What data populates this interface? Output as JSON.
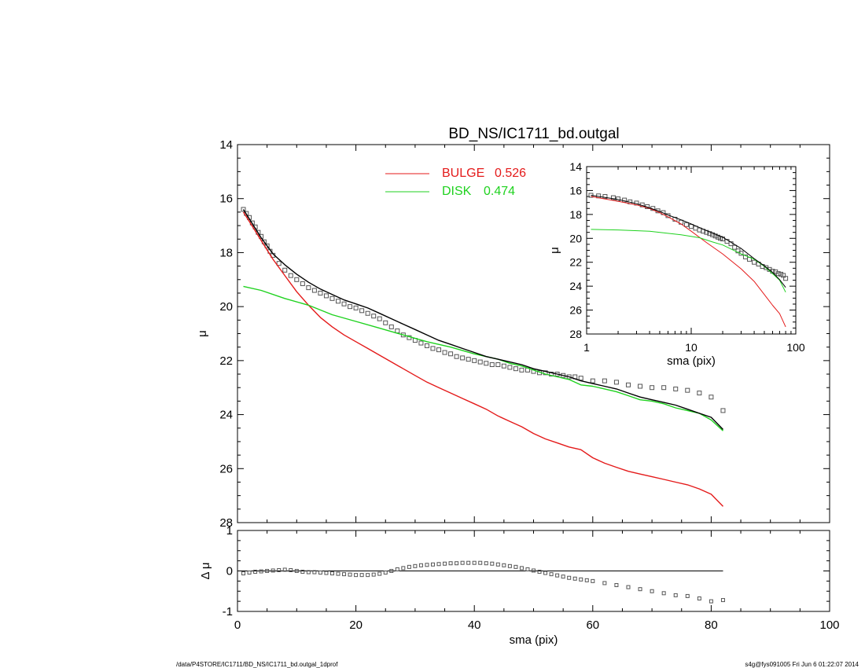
{
  "footer": {
    "left": "/data/P4STORE/IC1711/BD_NS/IC1711_bd.outgal_1dprof",
    "right": "s4g@fys091005  Fri Jun  6 01:22:07 2014"
  },
  "colors": {
    "bulge": "#e41a1a",
    "disk": "#1fd21f",
    "data": "#555555",
    "model": "#000000"
  },
  "chart_data": [
    {
      "id": "main",
      "type": "line",
      "title": "BD_NS/IC1711_bd.outgal",
      "ylabel": "μ",
      "xlim": [
        0,
        100
      ],
      "ylim": [
        28,
        14
      ],
      "xticks": [
        "0",
        "20",
        "40",
        "60",
        "80",
        "100"
      ],
      "yticks": [
        "14",
        "16",
        "18",
        "20",
        "22",
        "24",
        "26",
        "28"
      ],
      "legend": [
        {
          "name": "BULGE",
          "value": "0.526",
          "color": "#e41a1a"
        },
        {
          "name": "DISK",
          "value": "0.474",
          "color": "#1fd21f"
        }
      ],
      "series": [
        {
          "name": "BULGE",
          "kind": "line",
          "color": "#e41a1a",
          "x": [
            1,
            2,
            3,
            4,
            5,
            6,
            8,
            10,
            12,
            14,
            16,
            18,
            20,
            22,
            24,
            26,
            28,
            30,
            32,
            34,
            36,
            38,
            40,
            42,
            44,
            46,
            48,
            50,
            52,
            54,
            56,
            58,
            60,
            62,
            64,
            66,
            68,
            70,
            72,
            74,
            76,
            78,
            80,
            82
          ],
          "y": [
            16.5,
            16.85,
            17.2,
            17.55,
            17.9,
            18.25,
            18.85,
            19.45,
            19.95,
            20.4,
            20.75,
            21.05,
            21.3,
            21.55,
            21.8,
            22.05,
            22.3,
            22.55,
            22.8,
            23.0,
            23.2,
            23.4,
            23.6,
            23.8,
            24.05,
            24.25,
            24.45,
            24.7,
            24.9,
            25.05,
            25.2,
            25.3,
            25.6,
            25.8,
            25.95,
            26.1,
            26.2,
            26.3,
            26.4,
            26.5,
            26.6,
            26.75,
            26.95,
            27.4
          ]
        },
        {
          "name": "DISK",
          "kind": "line",
          "color": "#1fd21f",
          "x": [
            1,
            4,
            8,
            12,
            16,
            20,
            24,
            28,
            32,
            36,
            40,
            44,
            46,
            48,
            50,
            52,
            54,
            56,
            58,
            60,
            62,
            64,
            66,
            68,
            70,
            72,
            74,
            76,
            78,
            80,
            82
          ],
          "y": [
            19.25,
            19.4,
            19.7,
            19.95,
            20.3,
            20.55,
            20.8,
            21.05,
            21.3,
            21.5,
            21.75,
            21.95,
            22.1,
            22.2,
            22.35,
            22.5,
            22.6,
            22.7,
            22.9,
            22.95,
            23.05,
            23.15,
            23.3,
            23.45,
            23.5,
            23.6,
            23.75,
            23.85,
            23.95,
            24.2,
            24.6
          ]
        },
        {
          "name": "Model",
          "kind": "line",
          "color": "#000000",
          "x": [
            1,
            2,
            3,
            4,
            5,
            6,
            8,
            10,
            12,
            14,
            16,
            18,
            20,
            22,
            24,
            26,
            28,
            30,
            32,
            34,
            36,
            38,
            40,
            42,
            44,
            46,
            48,
            50,
            52,
            54,
            56,
            58,
            60,
            62,
            64,
            66,
            68,
            70,
            72,
            74,
            76,
            78,
            80,
            82
          ],
          "y": [
            16.4,
            16.75,
            17.1,
            17.45,
            17.75,
            18.05,
            18.45,
            18.8,
            19.1,
            19.35,
            19.55,
            19.75,
            19.9,
            20.05,
            20.25,
            20.45,
            20.65,
            20.85,
            21.05,
            21.25,
            21.4,
            21.55,
            21.7,
            21.85,
            21.95,
            22.05,
            22.15,
            22.3,
            22.4,
            22.5,
            22.6,
            22.75,
            22.85,
            22.95,
            23.05,
            23.2,
            23.35,
            23.45,
            23.55,
            23.65,
            23.8,
            23.95,
            24.1,
            24.55
          ]
        },
        {
          "name": "Data",
          "kind": "scatter",
          "color": "#555555",
          "x": [
            1,
            1.5,
            2,
            2.5,
            3,
            3.5,
            4,
            4.5,
            5,
            5.5,
            6,
            7,
            8,
            9,
            10,
            11,
            12,
            13,
            14,
            15,
            16,
            17,
            18,
            19,
            20,
            21,
            22,
            23,
            24,
            25,
            26,
            27,
            28,
            29,
            30,
            31,
            32,
            33,
            34,
            35,
            36,
            37,
            38,
            39,
            40,
            41,
            42,
            43,
            44,
            45,
            46,
            47,
            48,
            49,
            50,
            51,
            52,
            53,
            54,
            55,
            56,
            57,
            58,
            60,
            62,
            64,
            66,
            68,
            70,
            72,
            74,
            76,
            78,
            80,
            82
          ],
          "y": [
            16.4,
            16.55,
            16.7,
            16.9,
            17.05,
            17.25,
            17.4,
            17.6,
            17.75,
            17.95,
            18.1,
            18.4,
            18.65,
            18.85,
            19.0,
            19.15,
            19.3,
            19.4,
            19.5,
            19.6,
            19.7,
            19.8,
            19.9,
            20.0,
            20.05,
            20.15,
            20.25,
            20.35,
            20.45,
            20.6,
            20.75,
            20.9,
            21.05,
            21.15,
            21.25,
            21.35,
            21.45,
            21.55,
            21.6,
            21.7,
            21.75,
            21.85,
            21.9,
            21.95,
            22.0,
            22.05,
            22.1,
            22.15,
            22.15,
            22.2,
            22.25,
            22.3,
            22.35,
            22.35,
            22.4,
            22.45,
            22.45,
            22.5,
            22.5,
            22.55,
            22.6,
            22.6,
            22.65,
            22.75,
            22.75,
            22.8,
            22.9,
            22.95,
            23.0,
            23.0,
            23.05,
            23.1,
            23.2,
            23.35,
            23.85
          ]
        }
      ]
    },
    {
      "id": "residual",
      "type": "scatter",
      "ylabel": "Δ μ",
      "xlabel": "sma (pix)",
      "xlim": [
        0,
        100
      ],
      "ylim": [
        -1,
        1
      ],
      "xticks": [
        "0",
        "20",
        "40",
        "60",
        "80",
        "100"
      ],
      "yticks": [
        "1",
        "0",
        "-1"
      ],
      "series": [
        {
          "name": "Residual",
          "kind": "scatter",
          "color": "#555555",
          "x": [
            1,
            2,
            3,
            4,
            5,
            6,
            7,
            8,
            9,
            10,
            11,
            12,
            13,
            14,
            15,
            16,
            17,
            18,
            19,
            20,
            21,
            22,
            23,
            24,
            25,
            26,
            27,
            28,
            29,
            30,
            31,
            32,
            33,
            34,
            35,
            36,
            37,
            38,
            39,
            40,
            41,
            42,
            43,
            44,
            45,
            46,
            47,
            48,
            49,
            50,
            51,
            52,
            53,
            54,
            55,
            56,
            57,
            58,
            59,
            60,
            62,
            64,
            66,
            68,
            70,
            72,
            74,
            76,
            78,
            80,
            82
          ],
          "y": [
            -0.06,
            -0.04,
            -0.02,
            -0.01,
            0.0,
            0.01,
            0.02,
            0.03,
            0.02,
            0.0,
            -0.02,
            -0.03,
            -0.03,
            -0.04,
            -0.05,
            -0.06,
            -0.07,
            -0.08,
            -0.09,
            -0.1,
            -0.1,
            -0.1,
            -0.09,
            -0.07,
            -0.04,
            0.0,
            0.04,
            0.07,
            0.1,
            0.12,
            0.14,
            0.15,
            0.16,
            0.17,
            0.18,
            0.19,
            0.19,
            0.2,
            0.2,
            0.2,
            0.2,
            0.19,
            0.18,
            0.16,
            0.14,
            0.12,
            0.1,
            0.07,
            0.04,
            0.01,
            -0.02,
            -0.05,
            -0.08,
            -0.11,
            -0.14,
            -0.17,
            -0.19,
            -0.21,
            -0.23,
            -0.25,
            -0.3,
            -0.35,
            -0.4,
            -0.45,
            -0.5,
            -0.55,
            -0.6,
            -0.62,
            -0.68,
            -0.75,
            -0.72
          ]
        },
        {
          "name": "Zero",
          "kind": "line",
          "color": "#000000",
          "x": [
            1,
            82
          ],
          "y": [
            0,
            0
          ]
        }
      ]
    },
    {
      "id": "inset",
      "type": "line",
      "xscale": "log",
      "ylabel": "μ",
      "xlabel": "sma (pix)",
      "xlim": [
        1,
        100
      ],
      "ylim": [
        28,
        14
      ],
      "xticks": [
        "1",
        "10",
        "100"
      ],
      "yticks": [
        "14",
        "16",
        "18",
        "20",
        "22",
        "24",
        "26",
        "28"
      ],
      "series": [
        {
          "name": "BULGE",
          "kind": "line",
          "color": "#e41a1a",
          "x": [
            1.1,
            2,
            3,
            4,
            5,
            6,
            8,
            10,
            14,
            20,
            30,
            40,
            50,
            60,
            70,
            80
          ],
          "y": [
            16.5,
            16.9,
            17.2,
            17.5,
            17.85,
            18.2,
            18.8,
            19.4,
            20.35,
            21.3,
            22.55,
            23.6,
            24.7,
            25.6,
            26.3,
            27.4
          ]
        },
        {
          "name": "DISK",
          "kind": "line",
          "color": "#1fd21f",
          "x": [
            1.1,
            2,
            4,
            8,
            12,
            16,
            20,
            30,
            40,
            50,
            60,
            70,
            80
          ],
          "y": [
            19.25,
            19.3,
            19.4,
            19.7,
            19.95,
            20.3,
            20.55,
            21.3,
            21.75,
            22.35,
            22.95,
            23.5,
            24.5
          ]
        },
        {
          "name": "Model",
          "kind": "line",
          "color": "#000000",
          "x": [
            1.1,
            2,
            3,
            4,
            5,
            6,
            8,
            10,
            14,
            20,
            30,
            40,
            50,
            60,
            70,
            80
          ],
          "y": [
            16.4,
            16.75,
            17.1,
            17.45,
            17.75,
            18.05,
            18.45,
            18.8,
            19.35,
            19.9,
            20.85,
            21.7,
            22.3,
            22.85,
            23.45,
            24.1
          ]
        },
        {
          "name": "Data",
          "kind": "scatter",
          "color": "#555555",
          "x": [
            1.1,
            1.3,
            1.5,
            1.8,
            2,
            2.3,
            2.6,
            3,
            3.4,
            3.8,
            4.3,
            4.8,
            5.4,
            6,
            7,
            8,
            9,
            10,
            11,
            12,
            13,
            14,
            15,
            16,
            17,
            18,
            19,
            20,
            22,
            24,
            26,
            28,
            30,
            33,
            36,
            40,
            44,
            48,
            52,
            56,
            60,
            64,
            68,
            72,
            76,
            80
          ],
          "y": [
            16.4,
            16.45,
            16.5,
            16.6,
            16.7,
            16.8,
            16.95,
            17.05,
            17.2,
            17.35,
            17.5,
            17.7,
            17.85,
            18.1,
            18.4,
            18.65,
            18.85,
            19.0,
            19.15,
            19.3,
            19.4,
            19.5,
            19.6,
            19.7,
            19.8,
            19.9,
            20.0,
            20.05,
            20.25,
            20.45,
            20.75,
            21.05,
            21.25,
            21.55,
            21.75,
            22.0,
            22.15,
            22.35,
            22.45,
            22.6,
            22.75,
            22.8,
            22.95,
            23.0,
            23.1,
            23.35
          ]
        }
      ]
    }
  ]
}
